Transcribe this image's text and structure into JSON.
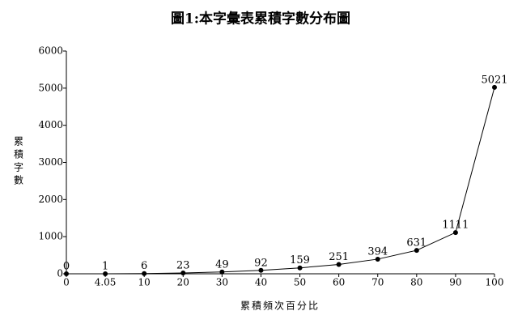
{
  "chart_data": {
    "type": "line",
    "title": "圖1:本字彙表累積字數分布圖",
    "x_label": "累積頻次百分比",
    "y_label": "累積字數",
    "categories": [
      "0",
      "4.05",
      "10",
      "20",
      "30",
      "40",
      "50",
      "60",
      "70",
      "80",
      "90",
      "100"
    ],
    "series": [
      {
        "name": "累積字數",
        "color": "#000000",
        "values": [
          0,
          1,
          6,
          23,
          49,
          92,
          159,
          251,
          394,
          631,
          1111,
          5021
        ]
      }
    ],
    "ylim": [
      0,
      6000
    ],
    "yticks": [
      0,
      1000,
      2000,
      3000,
      4000,
      5000,
      6000
    ],
    "grid": false,
    "legend": false
  }
}
